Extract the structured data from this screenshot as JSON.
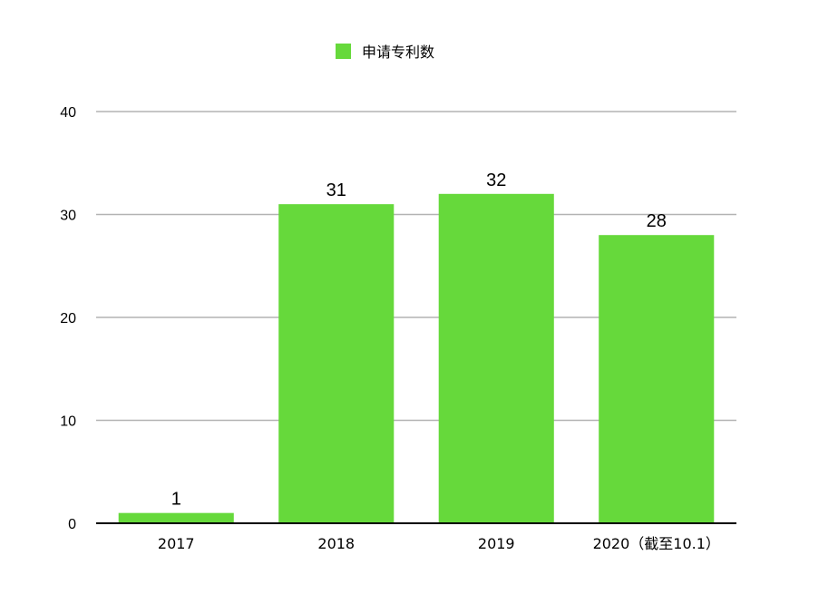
{
  "chart_data": {
    "type": "bar",
    "categories": [
      "2017",
      "2018",
      "2019",
      "2020（截至10.1）"
    ],
    "series": [
      {
        "name": "申请专利数",
        "values": [
          1,
          31,
          32,
          28
        ]
      }
    ],
    "data_labels": [
      "1",
      "31",
      "32",
      "28"
    ],
    "title": "",
    "xlabel": "",
    "ylabel": "",
    "ylim": [
      0,
      40
    ],
    "yticks": [
      "0",
      "10",
      "20",
      "30",
      "40"
    ],
    "grid": true,
    "legend_position": "top-center",
    "bar_color": "#66d93b",
    "grid_color": "#b3b3b3",
    "axis_color": "#000000"
  }
}
